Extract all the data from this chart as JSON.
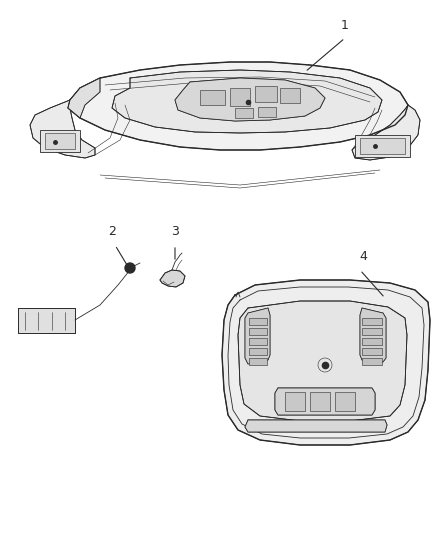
{
  "background_color": "#ffffff",
  "figure_width": 4.38,
  "figure_height": 5.33,
  "dpi": 100,
  "line_color": "#2a2a2a",
  "lw_main": 1.0,
  "lw_thin": 0.6,
  "lw_detail": 0.4,
  "part1_label": "1",
  "part2_label": "2",
  "part3_label": "3",
  "part4_label": "4",
  "font_size": 9
}
